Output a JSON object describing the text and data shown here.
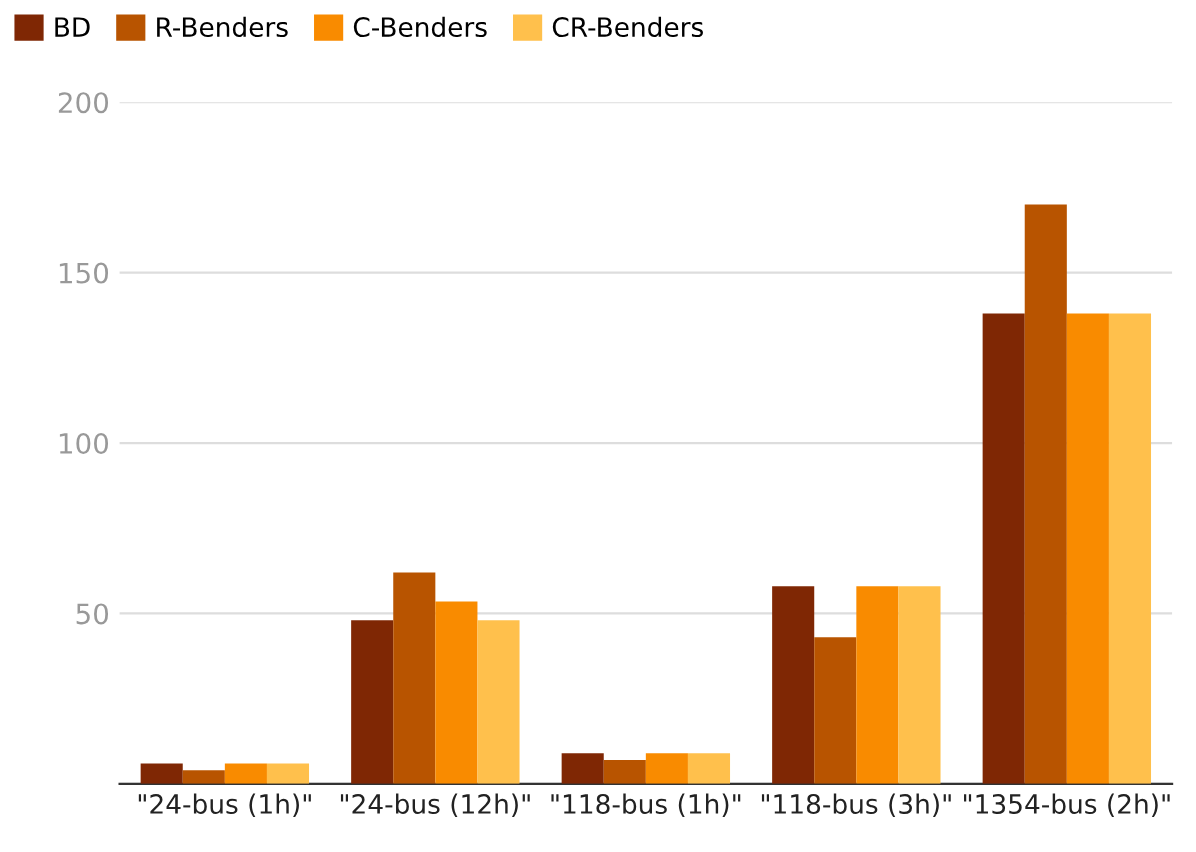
{
  "chart_data": {
    "type": "bar",
    "categories": [
      "\"24-bus (1h)\"",
      "\"24-bus (12h)\"",
      "\"118-bus (1h)\"",
      "\"118-bus (3h)\"",
      "\"1354-bus (2h)\""
    ],
    "series": [
      {
        "name": "BD",
        "color": "#7f2704",
        "values": [
          6,
          48,
          9,
          58,
          138
        ]
      },
      {
        "name": "R-Benders",
        "color": "#b85400",
        "values": [
          4,
          62,
          7,
          43,
          170
        ]
      },
      {
        "name": "C-Benders",
        "color": "#f98b00",
        "values": [
          6,
          53.5,
          9,
          58,
          138
        ]
      },
      {
        "name": "CR-Benders",
        "color": "#ffc04c",
        "values": [
          6,
          48,
          9,
          58,
          138
        ]
      }
    ],
    "ylim": [
      0,
      200
    ],
    "yticks": [
      {
        "value": 0,
        "label": null
      },
      50,
      100,
      150,
      200
    ],
    "grid": "y",
    "legend": "top left"
  }
}
